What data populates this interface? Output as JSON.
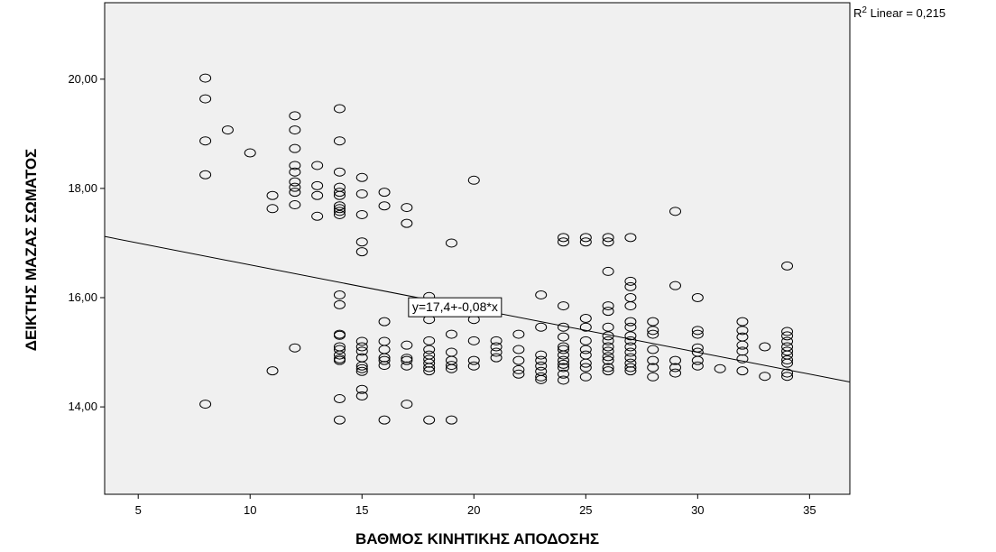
{
  "chart_data": {
    "type": "scatter",
    "title": "",
    "xlabel": "ΒΑΘΜΟΣ ΚΙΝΗΤΙΚΗΣ ΑΠΟΔΟΣΗΣ",
    "ylabel": "ΔΕΙΚΤΗΣ ΜΑΖΑΣ ΣΩΜΑΤΟΣ",
    "xlim": [
      3.5,
      36.8
    ],
    "ylim": [
      12.4,
      21.4
    ],
    "xticks": [
      "5",
      "10",
      "15",
      "20",
      "25",
      "30",
      "35"
    ],
    "xtick_values": [
      5,
      10,
      15,
      20,
      25,
      30,
      35
    ],
    "yticks": [
      "14,00",
      "16,00",
      "18,00",
      "20,00"
    ],
    "ytick_values": [
      14,
      16,
      18,
      20
    ],
    "grid": false,
    "background_color": "#f0f0f0",
    "marker": "open-circle",
    "fit_line": {
      "type": "linear",
      "intercept": 17.4,
      "slope": -0.08,
      "equation_label": "y=17,4+-0,08*x",
      "r2_label": "R² Linear = 0,215"
    },
    "points": [
      [
        8,
        20.02
      ],
      [
        8,
        19.64
      ],
      [
        8,
        18.87
      ],
      [
        8,
        18.25
      ],
      [
        8,
        14.05
      ],
      [
        9,
        19.07
      ],
      [
        10,
        18.65
      ],
      [
        11,
        17.87
      ],
      [
        11,
        17.63
      ],
      [
        11,
        14.66
      ],
      [
        12,
        19.33
      ],
      [
        12,
        19.07
      ],
      [
        12,
        18.73
      ],
      [
        12,
        18.42
      ],
      [
        12,
        18.3
      ],
      [
        12,
        18.12
      ],
      [
        12,
        18.02
      ],
      [
        12,
        17.93
      ],
      [
        12,
        17.7
      ],
      [
        12,
        15.08
      ],
      [
        13,
        18.42
      ],
      [
        13,
        18.05
      ],
      [
        13,
        17.87
      ],
      [
        13,
        17.49
      ],
      [
        14,
        19.46
      ],
      [
        14,
        18.87
      ],
      [
        14,
        18.3
      ],
      [
        14,
        18.02
      ],
      [
        14,
        17.93
      ],
      [
        14,
        17.87
      ],
      [
        14,
        17.68
      ],
      [
        14,
        17.63
      ],
      [
        14,
        17.58
      ],
      [
        14,
        17.52
      ],
      [
        14,
        16.05
      ],
      [
        14,
        15.87
      ],
      [
        14,
        15.33
      ],
      [
        14,
        15.31
      ],
      [
        14,
        15.1
      ],
      [
        14,
        15.05
      ],
      [
        14,
        14.95
      ],
      [
        14,
        14.88
      ],
      [
        14,
        14.85
      ],
      [
        14,
        14.15
      ],
      [
        14,
        13.76
      ],
      [
        15,
        18.2
      ],
      [
        15,
        17.9
      ],
      [
        15,
        17.52
      ],
      [
        15,
        17.02
      ],
      [
        15,
        16.84
      ],
      [
        15,
        15.2
      ],
      [
        15,
        15.1
      ],
      [
        15,
        15.02
      ],
      [
        15,
        14.9
      ],
      [
        15,
        14.75
      ],
      [
        15,
        14.7
      ],
      [
        15,
        14.65
      ],
      [
        15,
        14.32
      ],
      [
        15,
        14.2
      ],
      [
        16,
        17.93
      ],
      [
        16,
        17.68
      ],
      [
        16,
        15.56
      ],
      [
        16,
        15.2
      ],
      [
        16,
        15.05
      ],
      [
        16,
        14.9
      ],
      [
        16,
        14.85
      ],
      [
        16,
        14.76
      ],
      [
        16,
        13.76
      ],
      [
        17,
        17.65
      ],
      [
        17,
        17.36
      ],
      [
        17,
        15.13
      ],
      [
        17,
        14.89
      ],
      [
        17,
        14.85
      ],
      [
        17,
        14.75
      ],
      [
        17,
        14.05
      ],
      [
        18,
        16.02
      ],
      [
        18,
        15.85
      ],
      [
        18,
        15.6
      ],
      [
        18,
        15.21
      ],
      [
        18,
        15.05
      ],
      [
        18,
        14.95
      ],
      [
        18,
        14.87
      ],
      [
        18,
        14.8
      ],
      [
        18,
        14.72
      ],
      [
        18,
        14.66
      ],
      [
        18,
        13.76
      ],
      [
        19,
        17.0
      ],
      [
        19,
        15.33
      ],
      [
        19,
        15.0
      ],
      [
        19,
        14.85
      ],
      [
        19,
        14.76
      ],
      [
        19,
        14.7
      ],
      [
        19,
        13.76
      ],
      [
        20,
        18.15
      ],
      [
        20,
        15.6
      ],
      [
        20,
        15.21
      ],
      [
        20,
        14.85
      ],
      [
        20,
        14.75
      ],
      [
        21,
        15.21
      ],
      [
        21,
        15.1
      ],
      [
        21,
        15.0
      ],
      [
        21,
        14.9
      ],
      [
        22,
        15.33
      ],
      [
        22,
        15.05
      ],
      [
        22,
        14.85
      ],
      [
        22,
        14.68
      ],
      [
        22,
        14.6
      ],
      [
        23,
        16.05
      ],
      [
        23,
        15.46
      ],
      [
        23,
        14.95
      ],
      [
        23,
        14.85
      ],
      [
        23,
        14.75
      ],
      [
        23,
        14.65
      ],
      [
        23,
        14.55
      ],
      [
        23,
        14.5
      ],
      [
        24,
        17.1
      ],
      [
        24,
        17.02
      ],
      [
        24,
        15.85
      ],
      [
        24,
        15.46
      ],
      [
        24,
        15.28
      ],
      [
        24,
        15.1
      ],
      [
        24,
        15.05
      ],
      [
        24,
        14.95
      ],
      [
        24,
        14.85
      ],
      [
        24,
        14.78
      ],
      [
        24,
        14.72
      ],
      [
        24,
        14.6
      ],
      [
        24,
        14.49
      ],
      [
        25,
        17.1
      ],
      [
        25,
        17.02
      ],
      [
        25,
        15.62
      ],
      [
        25,
        15.46
      ],
      [
        25,
        15.21
      ],
      [
        25,
        15.05
      ],
      [
        25,
        14.95
      ],
      [
        25,
        14.8
      ],
      [
        25,
        14.72
      ],
      [
        25,
        14.55
      ],
      [
        26,
        17.1
      ],
      [
        26,
        17.02
      ],
      [
        26,
        16.48
      ],
      [
        26,
        15.85
      ],
      [
        26,
        15.75
      ],
      [
        26,
        15.46
      ],
      [
        26,
        15.3
      ],
      [
        26,
        15.21
      ],
      [
        26,
        15.1
      ],
      [
        26,
        15.02
      ],
      [
        26,
        14.92
      ],
      [
        26,
        14.85
      ],
      [
        26,
        14.72
      ],
      [
        26,
        14.66
      ],
      [
        27,
        17.1
      ],
      [
        27,
        16.3
      ],
      [
        27,
        16.2
      ],
      [
        27,
        16.0
      ],
      [
        27,
        15.85
      ],
      [
        27,
        15.56
      ],
      [
        27,
        15.46
      ],
      [
        27,
        15.3
      ],
      [
        27,
        15.21
      ],
      [
        27,
        15.1
      ],
      [
        27,
        15.0
      ],
      [
        27,
        14.9
      ],
      [
        27,
        14.8
      ],
      [
        27,
        14.72
      ],
      [
        27,
        14.66
      ],
      [
        28,
        15.56
      ],
      [
        28,
        15.4
      ],
      [
        28,
        15.33
      ],
      [
        28,
        15.05
      ],
      [
        28,
        14.85
      ],
      [
        28,
        14.72
      ],
      [
        28,
        14.55
      ],
      [
        29,
        17.58
      ],
      [
        29,
        16.22
      ],
      [
        29,
        14.85
      ],
      [
        29,
        14.72
      ],
      [
        29,
        14.62
      ],
      [
        30,
        16.0
      ],
      [
        30,
        15.4
      ],
      [
        30,
        15.33
      ],
      [
        30,
        15.08
      ],
      [
        30,
        15.0
      ],
      [
        30,
        14.85
      ],
      [
        30,
        14.75
      ],
      [
        31,
        14.7
      ],
      [
        32,
        15.56
      ],
      [
        32,
        15.4
      ],
      [
        32,
        15.28
      ],
      [
        32,
        15.13
      ],
      [
        32,
        15.02
      ],
      [
        32,
        14.88
      ],
      [
        32,
        14.66
      ],
      [
        33,
        15.1
      ],
      [
        33,
        14.56
      ],
      [
        34,
        16.58
      ],
      [
        34,
        15.38
      ],
      [
        34,
        15.3
      ],
      [
        34,
        15.2
      ],
      [
        34,
        15.1
      ],
      [
        34,
        15.02
      ],
      [
        34,
        14.95
      ],
      [
        34,
        14.86
      ],
      [
        34,
        14.8
      ],
      [
        34,
        14.62
      ],
      [
        34,
        14.56
      ]
    ]
  }
}
